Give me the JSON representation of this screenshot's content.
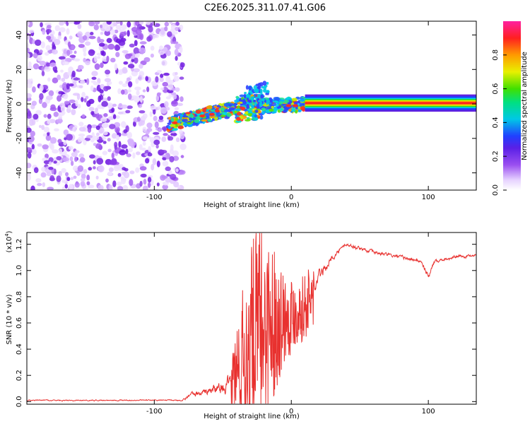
{
  "figure_title": "C2E6.2025.311.07.41.G06",
  "chart_data": [
    {
      "type": "heatmap",
      "title": "C2E6.2025.311.07.41.G06",
      "xlabel": "Height of straight line (km)",
      "ylabel": "Frequency (Hz)",
      "xlim": [
        -193,
        135
      ],
      "ylim": [
        -50,
        48
      ],
      "xticks": [
        -100,
        0,
        100
      ],
      "yticks": [
        -40,
        -20,
        0,
        20,
        40
      ],
      "colorbar": {
        "label": "Normalized spectral amplitude",
        "range": [
          0,
          1
        ],
        "ticks": [
          0.0,
          0.2,
          0.4,
          0.6,
          0.8
        ],
        "colormap": "white-purple-blue-cyan-green-yellow-orange-red-magenta"
      },
      "features": {
        "noise_region_x_end": -85,
        "signal_trace": [
          {
            "x": -90,
            "y": -12
          },
          {
            "x": -80,
            "y": -10
          },
          {
            "x": -70,
            "y": -8
          },
          {
            "x": -60,
            "y": -6
          },
          {
            "x": -50,
            "y": -4
          },
          {
            "x": -40,
            "y": -3
          },
          {
            "x": -30,
            "y": -2
          },
          {
            "x": -20,
            "y": -1
          },
          {
            "x": -10,
            "y": -0.5
          },
          {
            "x": 0,
            "y": -1
          },
          {
            "x": 10,
            "y": 0
          },
          {
            "x": 20,
            "y": 0.5
          },
          {
            "x": 135,
            "y": 0.5
          }
        ],
        "steady_band_start_x": 10,
        "steady_band_y": 0.5
      }
    },
    {
      "type": "line",
      "xlabel": "Height of straight line (km)",
      "ylabel": "SNR (10 * v/v)",
      "y_scale_label": "(x10",
      "y_scale_exp": "4",
      "y_scale_suffix": ")",
      "xlim": [
        -193,
        135
      ],
      "ylim": [
        -0.02,
        1.29
      ],
      "xticks": [
        -100,
        0,
        100
      ],
      "yticks": [
        0.0,
        0.2,
        0.4,
        0.6,
        0.8,
        1.0,
        1.2
      ],
      "series_color": "#e8312f",
      "envelope": [
        {
          "x": -193,
          "mean": 0.01,
          "spread": 0.02
        },
        {
          "x": -80,
          "mean": 0.01,
          "spread": 0.02
        },
        {
          "x": -75,
          "mean": 0.04,
          "spread": 0.07
        },
        {
          "x": -60,
          "mean": 0.08,
          "spread": 0.15
        },
        {
          "x": -45,
          "mean": 0.12,
          "spread": 0.25
        },
        {
          "x": -35,
          "mean": 0.3,
          "spread": 0.75
        },
        {
          "x": -25,
          "mean": 0.55,
          "spread": 1.05
        },
        {
          "x": -15,
          "mean": 0.6,
          "spread": 0.8
        },
        {
          "x": -5,
          "mean": 0.65,
          "spread": 0.45
        },
        {
          "x": 5,
          "mean": 0.68,
          "spread": 0.3
        },
        {
          "x": 15,
          "mean": 0.78,
          "spread": 0.35
        },
        {
          "x": 20,
          "mean": 0.95,
          "spread": 0.2
        },
        {
          "x": 30,
          "mean": 1.1,
          "spread": 0.1
        },
        {
          "x": 40,
          "mean": 1.2,
          "spread": 0.06
        },
        {
          "x": 60,
          "mean": 1.14,
          "spread": 0.06
        },
        {
          "x": 80,
          "mean": 1.1,
          "spread": 0.06
        },
        {
          "x": 95,
          "mean": 1.07,
          "spread": 0.06
        },
        {
          "x": 100,
          "mean": 0.95,
          "spread": 0.1
        },
        {
          "x": 105,
          "mean": 1.08,
          "spread": 0.06
        },
        {
          "x": 135,
          "mean": 1.12,
          "spread": 0.05
        }
      ]
    }
  ]
}
